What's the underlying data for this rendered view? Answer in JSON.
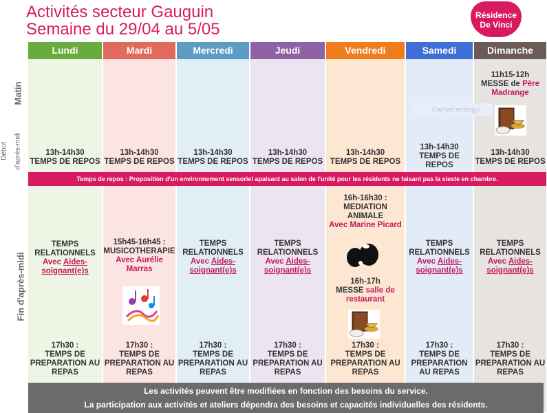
{
  "title": {
    "line1": "Activités secteur Gauguin",
    "line2": "Semaine du 29/04 au 5/05"
  },
  "logo": {
    "line1": "Résidence",
    "line2": "De Vinci"
  },
  "row_labels": {
    "matin": "Matin",
    "debut": "Début",
    "debut2": "d'après-midi",
    "fin": "Fin d'après-midi"
  },
  "days": [
    {
      "name": "Lundi",
      "color": "#6aab3d",
      "bg": "#eef5e4"
    },
    {
      "name": "Mardi",
      "color": "#e06a5c",
      "bg": "#fbe4e1"
    },
    {
      "name": "Mercredi",
      "color": "#5b9bc4",
      "bg": "#e2eef6"
    },
    {
      "name": "Jeudi",
      "color": "#8e63a6",
      "bg": "#ece4f1"
    },
    {
      "name": "Vendredi",
      "color": "#f07c1e",
      "bg": "#fde7d3"
    },
    {
      "name": "Samedi",
      "color": "#3f6fd6",
      "bg": "#e3ebf8"
    },
    {
      "name": "Dimanche",
      "color": "#6b5a55",
      "bg": "#e7e3e1"
    }
  ],
  "matin": {
    "dimanche": {
      "time": "11h15-12h",
      "label": "MESSE de",
      "who": "Père Madrange"
    }
  },
  "repos": {
    "time": "13h-14h30",
    "label": "TEMPS DE REPOS",
    "samedi_time": "13h-14h30",
    "samedi_l1": "TEMPS DE",
    "samedi_l2": "REPOS"
  },
  "banner": "Temps de repos : Proposition d'un environnement sensoriel apaisant au salon de l'unité pour les résidents ne faisant pas la sieste en chambre.",
  "relationnels": {
    "l1": "TEMPS",
    "l2": "RELATIONNELS",
    "avec": "Avec",
    "aides1": "Aides-",
    "aides2": "soignant(e)s"
  },
  "mardi": {
    "time": "15h45-16h45 :",
    "activity": "MUSICOTHERAPIE",
    "avec": "Avec Aurélie",
    "who": "Marras"
  },
  "vendredi": {
    "time": "16h-16h30 :",
    "l1": "MEDIATION",
    "l2": "ANIMALE",
    "who": "Avec Marine Picard",
    "messe_time": "16h-17h",
    "messe": "MESSE",
    "salle": "salle de",
    "salle2": "restaurant"
  },
  "preparation": {
    "time": "17h30 :",
    "l1": "TEMPS DE",
    "l2": "PREPARATION AU",
    "l3": "REPAS",
    "samedi_l1": "TEMPS DE",
    "samedi_l2": "PREPARATION",
    "samedi_l3": "AU REPAS"
  },
  "footer": {
    "line1": "Les activités peuvent être modifiées en fonction des besoins du service.",
    "line2": "La participation aux activités et ateliers dépendra des besoins et capacités individuelles des résidents."
  },
  "ghost_text": "Capture rectangu"
}
